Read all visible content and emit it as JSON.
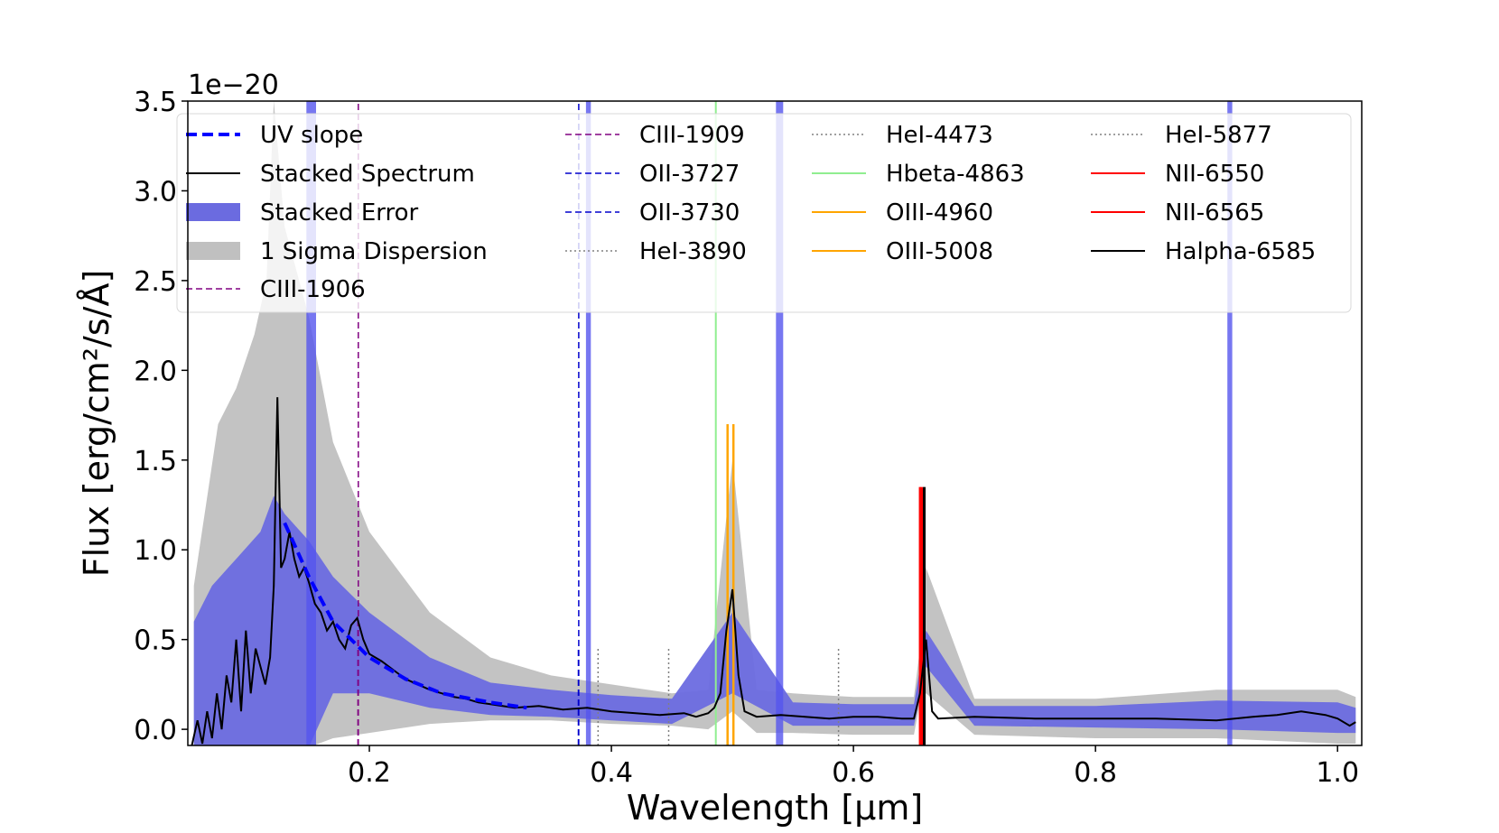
{
  "chart_data": {
    "type": "line",
    "title": "",
    "xlabel": "Wavelength [μm]",
    "ylabel": "Flux [erg/cm²/s/Å]",
    "y_offset_label": "1e−20",
    "xlim": [
      0.05,
      1.02
    ],
    "ylim": [
      -0.09,
      3.5
    ],
    "x_ticks": [
      0.2,
      0.4,
      0.6,
      0.8,
      1.0
    ],
    "x_tick_labels": [
      "0.2",
      "0.4",
      "0.6",
      "0.8",
      "1.0"
    ],
    "y_ticks": [
      0.0,
      0.5,
      1.0,
      1.5,
      2.0,
      2.5,
      3.0,
      3.5
    ],
    "y_tick_labels": [
      "0.0",
      "0.5",
      "1.0",
      "1.5",
      "2.0",
      "2.5",
      "3.0",
      "3.5"
    ],
    "grid": false,
    "legend_position": "top",
    "stacked_spectrum": {
      "name": "Stacked Spectrum",
      "color": "#000000",
      "x": [
        0.053,
        0.058,
        0.062,
        0.066,
        0.07,
        0.074,
        0.078,
        0.082,
        0.086,
        0.09,
        0.094,
        0.098,
        0.102,
        0.106,
        0.11,
        0.114,
        0.118,
        0.121,
        0.124,
        0.127,
        0.13,
        0.134,
        0.138,
        0.142,
        0.146,
        0.15,
        0.155,
        0.16,
        0.165,
        0.17,
        0.175,
        0.18,
        0.185,
        0.19,
        0.195,
        0.2,
        0.21,
        0.22,
        0.23,
        0.24,
        0.25,
        0.26,
        0.27,
        0.28,
        0.29,
        0.3,
        0.31,
        0.32,
        0.34,
        0.36,
        0.38,
        0.4,
        0.42,
        0.44,
        0.46,
        0.47,
        0.48,
        0.485,
        0.49,
        0.495,
        0.5,
        0.505,
        0.51,
        0.52,
        0.54,
        0.56,
        0.58,
        0.6,
        0.62,
        0.64,
        0.65,
        0.655,
        0.66,
        0.665,
        0.67,
        0.7,
        0.75,
        0.8,
        0.85,
        0.9,
        0.93,
        0.95,
        0.97,
        0.99,
        1.0,
        1.01,
        1.015
      ],
      "y": [
        -0.1,
        0.05,
        -0.08,
        0.1,
        -0.05,
        0.2,
        0.0,
        0.3,
        0.15,
        0.5,
        0.1,
        0.55,
        0.2,
        0.45,
        0.35,
        0.25,
        0.4,
        0.8,
        1.85,
        0.9,
        0.95,
        1.1,
        0.95,
        0.85,
        0.9,
        0.82,
        0.7,
        0.65,
        0.55,
        0.6,
        0.5,
        0.45,
        0.58,
        0.62,
        0.5,
        0.42,
        0.38,
        0.33,
        0.28,
        0.25,
        0.22,
        0.2,
        0.18,
        0.17,
        0.15,
        0.14,
        0.13,
        0.12,
        0.13,
        0.11,
        0.12,
        0.1,
        0.09,
        0.08,
        0.09,
        0.07,
        0.09,
        0.12,
        0.2,
        0.55,
        0.78,
        0.3,
        0.1,
        0.07,
        0.08,
        0.07,
        0.06,
        0.07,
        0.07,
        0.06,
        0.06,
        0.2,
        0.5,
        0.1,
        0.06,
        0.07,
        0.06,
        0.06,
        0.06,
        0.05,
        0.07,
        0.08,
        0.1,
        0.08,
        0.06,
        0.02,
        0.04
      ]
    },
    "stacked_error": {
      "name": "Stacked Error",
      "color": "#6b6be0",
      "x": [
        0.055,
        0.07,
        0.09,
        0.11,
        0.121,
        0.13,
        0.15,
        0.17,
        0.2,
        0.25,
        0.3,
        0.35,
        0.4,
        0.45,
        0.5,
        0.55,
        0.6,
        0.65,
        0.66,
        0.7,
        0.8,
        0.9,
        1.0,
        1.015
      ],
      "upper": [
        0.6,
        0.8,
        0.95,
        1.1,
        1.3,
        1.2,
        1.05,
        0.85,
        0.65,
        0.4,
        0.26,
        0.22,
        0.19,
        0.17,
        0.65,
        0.15,
        0.14,
        0.14,
        0.55,
        0.13,
        0.13,
        0.16,
        0.15,
        0.12
      ],
      "lower": [
        -0.1,
        -0.1,
        -0.1,
        -0.1,
        -0.1,
        -0.1,
        -0.1,
        0.2,
        0.2,
        0.12,
        0.08,
        0.07,
        0.05,
        0.03,
        0.2,
        0.02,
        0.02,
        0.02,
        0.35,
        0.02,
        0.01,
        0.0,
        -0.02,
        -0.02
      ]
    },
    "sigma_dispersion": {
      "name": "1 Sigma Dispersion",
      "color": "#c0c0c0",
      "x": [
        0.055,
        0.075,
        0.09,
        0.105,
        0.115,
        0.121,
        0.13,
        0.15,
        0.17,
        0.2,
        0.25,
        0.3,
        0.35,
        0.4,
        0.45,
        0.48,
        0.5,
        0.52,
        0.55,
        0.6,
        0.65,
        0.655,
        0.66,
        0.7,
        0.8,
        0.9,
        1.0,
        1.015
      ],
      "upper": [
        0.8,
        1.7,
        1.9,
        2.2,
        2.5,
        3.5,
        2.8,
        2.3,
        1.6,
        1.1,
        0.65,
        0.4,
        0.3,
        0.25,
        0.2,
        0.22,
        1.5,
        0.22,
        0.2,
        0.18,
        0.18,
        0.45,
        0.9,
        0.17,
        0.17,
        0.22,
        0.22,
        0.18
      ],
      "lower": [
        -0.1,
        -0.1,
        -0.1,
        -0.1,
        -0.1,
        -0.1,
        -0.1,
        -0.1,
        -0.05,
        -0.02,
        0.03,
        0.05,
        0.05,
        0.03,
        0.02,
        0.0,
        0.1,
        -0.02,
        -0.02,
        -0.03,
        -0.03,
        0.15,
        0.2,
        -0.03,
        -0.05,
        -0.05,
        -0.08,
        -0.08
      ]
    },
    "uv_slope": {
      "name": "UV slope",
      "color": "#0000ff",
      "x": [
        0.13,
        0.15,
        0.17,
        0.2,
        0.23,
        0.26,
        0.3,
        0.33
      ],
      "y": [
        1.15,
        0.85,
        0.6,
        0.4,
        0.28,
        0.2,
        0.15,
        0.12
      ]
    },
    "error_bands": {
      "color": "#5555ee",
      "ranges": [
        [
          0.148,
          0.156
        ],
        [
          0.379,
          0.383
        ],
        [
          0.536,
          0.542
        ],
        [
          0.909,
          0.913
        ]
      ]
    },
    "lines": [
      {
        "name": "CIII-1906",
        "x": 0.1906,
        "y_top": 0.6,
        "color": "#800080",
        "style": "dashed",
        "width": 1.5
      },
      {
        "name": "CIII-1909",
        "x": 0.1909,
        "y_top": 3.5,
        "color": "#800080",
        "style": "dashed",
        "width": 1.5
      },
      {
        "name": "OII-3727",
        "x": 0.3727,
        "y_top": 0.45,
        "color": "#0000cc",
        "style": "dashed",
        "width": 1.5
      },
      {
        "name": "OII-3730",
        "x": 0.373,
        "y_top": 3.5,
        "color": "#0000cc",
        "style": "dashed",
        "width": 1.5
      },
      {
        "name": "HeI-3890",
        "x": 0.389,
        "y_top": 0.45,
        "color": "#808080",
        "style": "dotted",
        "width": 1.5
      },
      {
        "name": "HeI-4473",
        "x": 0.4473,
        "y_top": 0.45,
        "color": "#808080",
        "style": "dotted",
        "width": 1.5
      },
      {
        "name": "Hbeta-4863",
        "x": 0.4863,
        "y_top": 3.5,
        "color": "#90ee90",
        "style": "solid",
        "width": 2
      },
      {
        "name": "OIII-4960",
        "x": 0.496,
        "y_top": 1.7,
        "color": "#ffa500",
        "style": "solid",
        "width": 2.5
      },
      {
        "name": "OIII-5008",
        "x": 0.5008,
        "y_top": 1.7,
        "color": "#ffa500",
        "style": "solid",
        "width": 2.5
      },
      {
        "name": "HeI-5877",
        "x": 0.5877,
        "y_top": 0.45,
        "color": "#808080",
        "style": "dotted",
        "width": 1.5
      },
      {
        "name": "NII-6550",
        "x": 0.655,
        "y_top": 1.35,
        "color": "#ff0000",
        "style": "solid",
        "width": 2.5
      },
      {
        "name": "NII-6565",
        "x": 0.6565,
        "y_top": 1.35,
        "color": "#ff0000",
        "style": "solid",
        "width": 2.5
      },
      {
        "name": "Halpha-6585",
        "x": 0.6585,
        "y_top": 1.35,
        "color": "#000000",
        "style": "solid",
        "width": 3
      }
    ],
    "legend": [
      {
        "label": "UV slope",
        "kind": "line",
        "color": "#0000ff",
        "style": "dashed",
        "width": 4
      },
      {
        "label": "Stacked Spectrum",
        "kind": "line",
        "color": "#000000",
        "style": "solid",
        "width": 2
      },
      {
        "label": "Stacked Error",
        "kind": "patch",
        "color": "#6b6be0"
      },
      {
        "label": "1 Sigma Dispersion",
        "kind": "patch",
        "color": "#c0c0c0"
      },
      {
        "label": "CIII-1906",
        "kind": "line",
        "color": "#800080",
        "style": "dashed",
        "width": 1.5
      },
      {
        "label": "CIII-1909",
        "kind": "line",
        "color": "#800080",
        "style": "dashed",
        "width": 1.5
      },
      {
        "label": "OII-3727",
        "kind": "line",
        "color": "#0000cc",
        "style": "dashed",
        "width": 1.5
      },
      {
        "label": "OII-3730",
        "kind": "line",
        "color": "#0000cc",
        "style": "dashed",
        "width": 1.5
      },
      {
        "label": "HeI-3890",
        "kind": "line",
        "color": "#808080",
        "style": "dotted",
        "width": 1.5
      },
      {
        "label": "HeI-4473",
        "kind": "line",
        "color": "#808080",
        "style": "dotted",
        "width": 1.5
      },
      {
        "label": "Hbeta-4863",
        "kind": "line",
        "color": "#90ee90",
        "style": "solid",
        "width": 2
      },
      {
        "label": "OIII-4960",
        "kind": "line",
        "color": "#ffa500",
        "style": "solid",
        "width": 2
      },
      {
        "label": "OIII-5008",
        "kind": "line",
        "color": "#ffa500",
        "style": "solid",
        "width": 2
      },
      {
        "label": "HeI-5877",
        "kind": "line",
        "color": "#808080",
        "style": "dotted",
        "width": 1.5
      },
      {
        "label": "NII-6550",
        "kind": "line",
        "color": "#ff0000",
        "style": "solid",
        "width": 2
      },
      {
        "label": "NII-6565",
        "kind": "line",
        "color": "#ff0000",
        "style": "solid",
        "width": 2
      },
      {
        "label": "Halpha-6585",
        "kind": "line",
        "color": "#000000",
        "style": "solid",
        "width": 2
      }
    ]
  }
}
